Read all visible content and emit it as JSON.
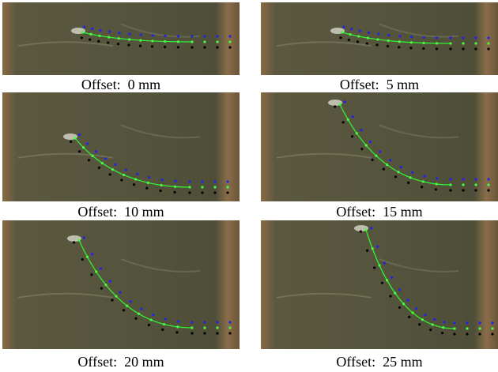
{
  "panels": [
    {
      "caption": "Offset:  0 mm"
    },
    {
      "caption": "Offset:  5 mm"
    },
    {
      "caption": "Offset:  10 mm"
    },
    {
      "caption": "Offset:  15 mm"
    },
    {
      "caption": "Offset:  20 mm"
    },
    {
      "caption": "Offset:  25 mm"
    }
  ]
}
